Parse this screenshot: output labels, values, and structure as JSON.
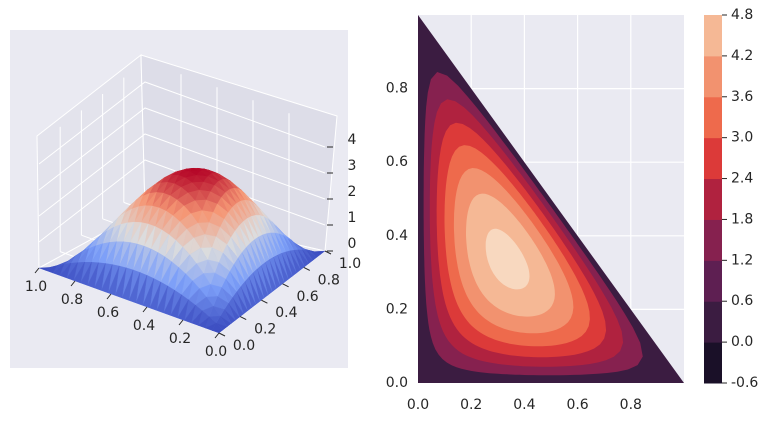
{
  "chart_data": [
    {
      "type": "surface3d",
      "title": "",
      "colormap": "coolwarm",
      "x_ticks": [
        "0.0",
        "0.2",
        "0.4",
        "0.6",
        "0.8",
        "1.0"
      ],
      "y_ticks": [
        "0.0",
        "0.2",
        "0.4",
        "0.6",
        "0.8",
        "1.0"
      ],
      "z_ticks": [
        "0",
        "1",
        "2",
        "3",
        "4"
      ],
      "xlim": [
        0,
        1
      ],
      "ylim": [
        0,
        1
      ],
      "zlim": [
        0,
        4.8
      ],
      "domain": "triangle x >= 0, y >= 0, x + y <= 1",
      "peak": {
        "x": 0.333,
        "y": 0.333,
        "z": 4.4
      },
      "grid": true
    },
    {
      "type": "contourf",
      "title": "",
      "colormap": "rocket",
      "x_ticks": [
        "0.0",
        "0.2",
        "0.4",
        "0.6",
        "0.8"
      ],
      "y_ticks": [
        "0.0",
        "0.2",
        "0.4",
        "0.6",
        "0.8"
      ],
      "xlim": [
        0,
        1
      ],
      "ylim": [
        0,
        1
      ],
      "domain": "triangle x >= 0, y >= 0, x + y <= 1",
      "peak": {
        "x": 0.333,
        "y": 0.333,
        "z": 4.4
      },
      "levels": [
        -0.6,
        0.0,
        0.6,
        1.2,
        1.8,
        2.4,
        3.0,
        3.6,
        4.2,
        4.8
      ],
      "level_colors": [
        "#1a1028",
        "#3b1c41",
        "#5e1f52",
        "#86214f",
        "#b0223f",
        "#dc3a39",
        "#ee6a4c",
        "#f2926f",
        "#f5b895",
        "#f8d8bf"
      ],
      "colorbar_ticks": [
        "-0.6",
        "0.0",
        "0.6",
        "1.2",
        "1.8",
        "2.4",
        "3.0",
        "3.6",
        "4.2",
        "4.8"
      ],
      "grid": true
    }
  ]
}
